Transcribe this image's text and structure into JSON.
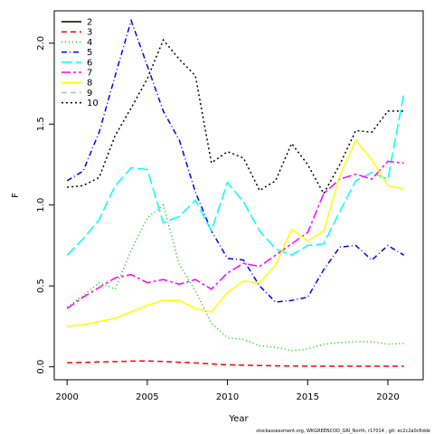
{
  "chart_data": {
    "type": "line",
    "xlabel": "Year",
    "ylabel": "F",
    "xlim": [
      1999.2,
      2022.2
    ],
    "ylim": [
      -0.08,
      2.2
    ],
    "x_ticks": [
      2000,
      2005,
      2010,
      2015,
      2020
    ],
    "y_ticks": [
      0.0,
      0.5,
      1.0,
      1.5,
      2.0
    ],
    "y_tick_labels": [
      "0.0",
      "0.5",
      "1.0",
      "1.5",
      "2.0"
    ],
    "legend_position": "top-left",
    "credit": "stockassessment.org, WKGREENCOD_GRI_North, r17014 , git: ec2c2a0c6dde",
    "x": [
      2000,
      2001,
      2002,
      2003,
      2004,
      2005,
      2006,
      2007,
      2008,
      2009,
      2010,
      2011,
      2012,
      2013,
      2014,
      2015,
      2016,
      2017,
      2018,
      2019,
      2020,
      2021
    ],
    "series": [
      {
        "name": "2",
        "color": "#000000",
        "dash": "",
        "values": [
          null,
          null,
          null,
          null,
          null,
          null,
          null,
          null,
          null,
          null,
          null,
          null,
          null,
          null,
          null,
          null,
          null,
          null,
          null,
          null,
          null,
          null
        ]
      },
      {
        "name": "3",
        "color": "#ff0000",
        "dash": "6,4",
        "values": [
          0.025,
          0.027,
          0.03,
          0.032,
          0.035,
          0.036,
          0.033,
          0.028,
          0.024,
          0.018,
          0.012,
          0.01,
          0.008,
          0.006,
          0.005,
          0.004,
          0.004,
          0.004,
          0.004,
          0.004,
          0.004,
          0.004
        ]
      },
      {
        "name": "4",
        "color": "#00cd00",
        "dash": "1,3",
        "values": [
          0.37,
          0.44,
          0.52,
          0.48,
          0.72,
          0.92,
          1.0,
          0.63,
          0.47,
          0.27,
          0.18,
          0.17,
          0.13,
          0.12,
          0.1,
          0.11,
          0.14,
          0.15,
          0.155,
          0.155,
          0.14,
          0.145
        ]
      },
      {
        "name": "5",
        "color": "#0000ff",
        "dash": "6,3,1,3",
        "values": [
          1.15,
          1.21,
          1.45,
          1.8,
          2.14,
          1.86,
          1.58,
          1.4,
          1.08,
          0.84,
          0.67,
          0.66,
          0.5,
          0.4,
          0.41,
          0.43,
          0.6,
          0.74,
          0.75,
          0.66,
          0.75,
          0.69
        ]
      },
      {
        "name": "6",
        "color": "#00ffff",
        "dash": "12,4",
        "values": [
          0.69,
          0.79,
          0.91,
          1.12,
          1.23,
          1.22,
          0.89,
          0.93,
          1.03,
          0.84,
          1.14,
          1.02,
          0.84,
          0.73,
          0.69,
          0.75,
          0.76,
          0.96,
          1.15,
          1.2,
          1.16,
          1.69
        ]
      },
      {
        "name": "7",
        "color": "#ff00ff",
        "dash": "10,3,3,3",
        "values": [
          0.36,
          0.43,
          0.49,
          0.55,
          0.57,
          0.52,
          0.54,
          0.51,
          0.54,
          0.48,
          0.58,
          0.64,
          0.62,
          0.69,
          0.76,
          0.83,
          1.07,
          1.16,
          1.19,
          1.16,
          1.27,
          1.26
        ]
      },
      {
        "name": "8",
        "color": "#ffff00",
        "dash": "",
        "values": [
          0.25,
          0.26,
          0.28,
          0.3,
          0.34,
          0.38,
          0.41,
          0.41,
          0.36,
          0.34,
          0.46,
          0.53,
          0.52,
          0.63,
          0.85,
          0.78,
          0.84,
          1.18,
          1.4,
          1.28,
          1.12,
          1.1
        ]
      },
      {
        "name": "9",
        "color": "#bebebe",
        "dash": "6,4",
        "values": [
          null,
          null,
          null,
          null,
          null,
          null,
          null,
          null,
          null,
          null,
          null,
          null,
          null,
          null,
          null,
          null,
          null,
          null,
          null,
          null,
          null,
          null
        ]
      },
      {
        "name": "10",
        "color": "#000000",
        "dash": "2,3",
        "values": [
          1.11,
          1.12,
          1.17,
          1.43,
          1.6,
          1.78,
          2.02,
          1.9,
          1.8,
          1.26,
          1.33,
          1.29,
          1.09,
          1.15,
          1.38,
          1.25,
          1.07,
          1.25,
          1.46,
          1.45,
          1.58,
          1.58
        ]
      }
    ]
  }
}
